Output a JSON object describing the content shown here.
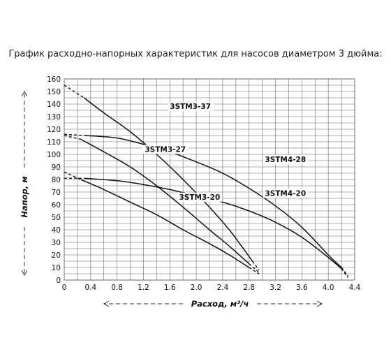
{
  "chart_data": {
    "type": "line",
    "title": "График расходно-напорных характеристик для насосов диаметром 3 дюйма:",
    "xlabel": "Расход, м³/ч",
    "ylabel": "Напор, м",
    "xlim": [
      0,
      4.4
    ],
    "ylim": [
      0,
      160
    ],
    "x_ticks": [
      "0",
      "0.4",
      "0.8",
      "1.2",
      "1.6",
      "2.0",
      "2.4",
      "2.8",
      "3.2",
      "3.6",
      "4.0",
      "4.4"
    ],
    "y_ticks": [
      "0",
      "10",
      "20",
      "30",
      "40",
      "50",
      "60",
      "70",
      "80",
      "90",
      "100",
      "110",
      "120",
      "130",
      "140",
      "150",
      "160"
    ],
    "grid": true,
    "series": [
      {
        "name": "3STM3-37",
        "dashed_start": [
          [
            0,
            155
          ],
          [
            0.3,
            145
          ]
        ],
        "values": [
          [
            0.3,
            145
          ],
          [
            0.6,
            133
          ],
          [
            1.0,
            118
          ],
          [
            1.4,
            100
          ],
          [
            1.8,
            80
          ],
          [
            2.2,
            58
          ],
          [
            2.5,
            40
          ],
          [
            2.7,
            26
          ],
          [
            2.85,
            15
          ]
        ],
        "dashed_end": [
          [
            2.85,
            15
          ],
          [
            2.95,
            8
          ]
        ]
      },
      {
        "name": "3STM3-27",
        "dashed_start": [
          [
            0,
            115
          ],
          [
            0.25,
            112
          ]
        ],
        "values": [
          [
            0.25,
            112
          ],
          [
            0.6,
            102
          ],
          [
            1.0,
            90
          ],
          [
            1.4,
            75
          ],
          [
            1.8,
            58
          ],
          [
            2.2,
            40
          ],
          [
            2.5,
            27
          ],
          [
            2.8,
            13
          ]
        ],
        "dashed_end": [
          [
            2.8,
            13
          ],
          [
            2.95,
            6
          ]
        ]
      },
      {
        "name": "3STM3-20",
        "dashed_start": [
          [
            0,
            86
          ],
          [
            0.25,
            80
          ]
        ],
        "values": [
          [
            0.25,
            80
          ],
          [
            0.6,
            72
          ],
          [
            1.0,
            62
          ],
          [
            1.4,
            52
          ],
          [
            1.8,
            40
          ],
          [
            2.2,
            29
          ],
          [
            2.5,
            20
          ],
          [
            2.8,
            10
          ]
        ],
        "dashed_end": [
          [
            2.8,
            10
          ],
          [
            2.95,
            5
          ]
        ]
      },
      {
        "name": "3STM4-28",
        "dashed_start": [
          [
            0,
            116
          ],
          [
            0.3,
            115
          ]
        ],
        "values": [
          [
            0.3,
            115
          ],
          [
            0.8,
            113
          ],
          [
            1.2,
            108
          ],
          [
            1.6,
            102
          ],
          [
            2.0,
            94
          ],
          [
            2.4,
            85
          ],
          [
            2.8,
            73
          ],
          [
            3.2,
            59
          ],
          [
            3.6,
            42
          ],
          [
            4.0,
            20
          ],
          [
            4.2,
            10
          ]
        ],
        "dashed_end": [
          [
            4.2,
            10
          ],
          [
            4.3,
            3
          ]
        ]
      },
      {
        "name": "3STM4-20",
        "dashed_start": [
          [
            0,
            81
          ],
          [
            0.3,
            81
          ]
        ],
        "values": [
          [
            0.3,
            81
          ],
          [
            0.8,
            79
          ],
          [
            1.2,
            76
          ],
          [
            1.6,
            72
          ],
          [
            2.0,
            67
          ],
          [
            2.4,
            62
          ],
          [
            2.8,
            55
          ],
          [
            3.2,
            46
          ],
          [
            3.6,
            34
          ],
          [
            4.0,
            18
          ],
          [
            4.2,
            9
          ]
        ],
        "dashed_end": [
          [
            4.2,
            9
          ],
          [
            4.3,
            2
          ]
        ]
      }
    ],
    "labels": [
      {
        "text": "3STM3-37",
        "x": 1.6,
        "y": 136
      },
      {
        "text": "3STM3-27",
        "x": 1.22,
        "y": 102
      },
      {
        "text": "3STM4-28",
        "x": 3.04,
        "y": 94
      },
      {
        "text": "3STM3-20",
        "x": 1.74,
        "y": 64
      },
      {
        "text": "3STM4-20",
        "x": 3.04,
        "y": 67
      }
    ]
  }
}
